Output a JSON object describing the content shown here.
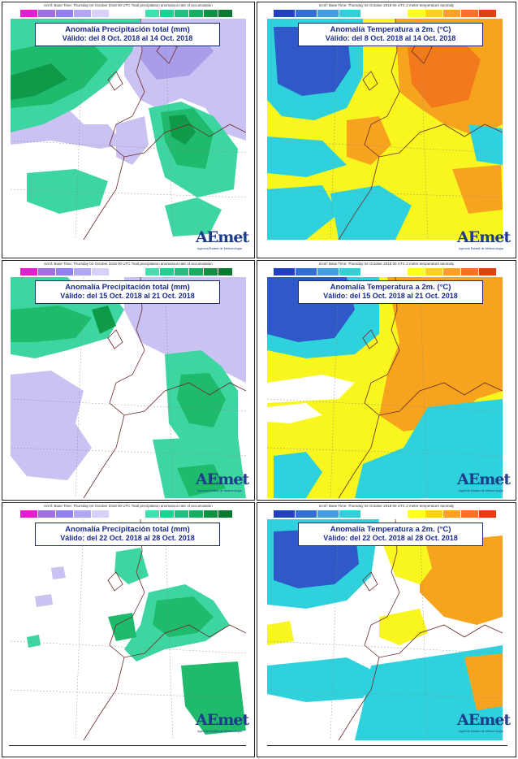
{
  "panels": [
    {
      "kind": "precip",
      "header": "ecmf: Base Time: Thursday 04 October 2018 00 UTC Total precipitation anomalous rate of accumulation",
      "title": "Anomalía Precipitación total (mm)",
      "period": "Válido: del 8 Oct. 2018 al 14 Oct. 2018"
    },
    {
      "kind": "temp",
      "header": "ecmf: Base Time: Thursday 04 October 2018 00 UTC 2 metre temperature anomaly",
      "title": "Anomalía Temperatura a 2m. (°C)",
      "period": "Válido: del 8 Oct. 2018 al 14 Oct. 2018"
    },
    {
      "kind": "precip",
      "header": "ecmf: Base Time: Thursday 04 October 2018 00 UTC Total precipitation anomalous rate of accumulation",
      "title": "Anomalía Precipitación total (mm)",
      "period": "Válido: del 15 Oct. 2018 al 21 Oct. 2018"
    },
    {
      "kind": "temp",
      "header": "ecmf: Base Time: Thursday 04 October 2018 00 UTC 2 metre temperature anomaly",
      "title": "Anomalía Temperatura a 2m. (°C)",
      "period": "Válido: del 15 Oct. 2018 al 21 Oct. 2018"
    },
    {
      "kind": "precip",
      "header": "ecmf: Base Time: Thursday 04 October 2018 00 UTC Total precipitation anomalous rate of accumulation",
      "title": "Anomalía Precipitación total (mm)",
      "period": "Válido: del 22 Oct. 2018 al 28 Oct. 2018"
    },
    {
      "kind": "temp",
      "header": "ecmf: Base Time: Thursday 04 October 2018 00 UTC 2 metre temperature anomaly",
      "title": "Anomalía Temperatura a 2m. (°C)",
      "period": "Válido: del 22 Oct. 2018 al 28 Oct. 2018"
    }
  ],
  "logo": {
    "name": "AEmet",
    "subtitle": "Agencia Estatal de Meteorología"
  },
  "legend_colors": {
    "precip_dry": [
      "#e020d0",
      "#a070e0",
      "#9080f0",
      "#b0a8f0",
      "#d8d0f8"
    ],
    "precip_wet": [
      "#40e0b0",
      "#20d090",
      "#20c080",
      "#10b060",
      "#109040",
      "#0a7a30"
    ],
    "temp_cold": [
      "#2040c0",
      "#3070d0",
      "#40a0e0",
      "#30d0d8"
    ],
    "temp_warm": [
      "#ffff20",
      "#ffd020",
      "#ffa020",
      "#ff7020",
      "#e04010"
    ]
  },
  "map_colors": {
    "precip_dry_light": "#c9c2f2",
    "precip_dry_mid": "#a99ce8",
    "precip_wet_light": "#3dd6a0",
    "precip_wet_mid": "#1fba6c",
    "precip_wet_dark": "#0f9a4a",
    "temp_cold_dark": "#2f58c8",
    "temp_cold_light": "#2fd2dc",
    "temp_warm_yellow": "#f8f61e",
    "temp_warm_orange": "#f6a41e",
    "temp_hot": "#f37a1c",
    "coast": "#6b2a2a"
  }
}
